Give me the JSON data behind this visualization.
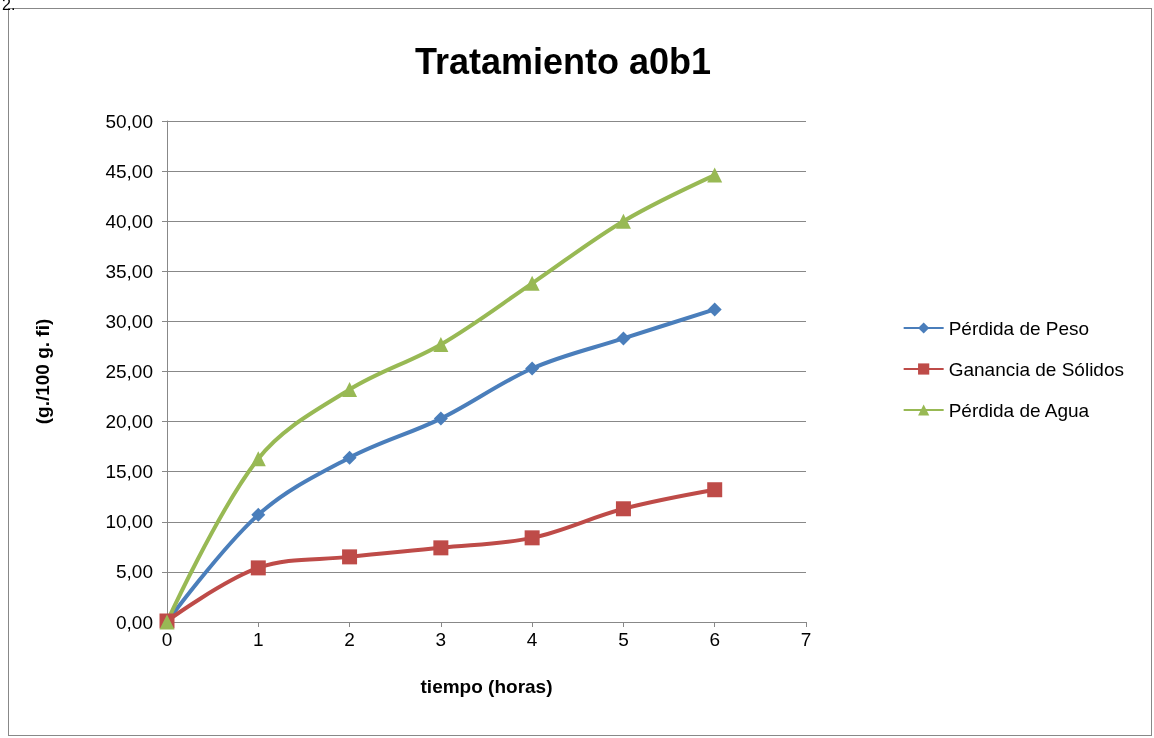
{
  "chart_data": {
    "type": "line",
    "title": "Tratamiento a0b1",
    "xlabel": "tiempo (horas)",
    "ylabel": "(g./100 g. fi)",
    "annotations": [
      "2."
    ],
    "x": [
      0,
      1,
      2,
      3,
      4,
      5,
      6
    ],
    "series": [
      {
        "name": "Pérdida de Peso",
        "color": "#4a7ebb",
        "marker": "diamond",
        "values": [
          0,
          10.7,
          16.4,
          20.3,
          25.3,
          28.3,
          31.2
        ]
      },
      {
        "name": "Ganancia de Sólidos",
        "color": "#be4b48",
        "marker": "square",
        "values": [
          0.1,
          5.4,
          6.5,
          7.4,
          8.4,
          11.3,
          13.2
        ]
      },
      {
        "name": "Pérdida de Agua",
        "color": "#98b954",
        "marker": "triangle",
        "values": [
          0,
          16.3,
          23.2,
          27.7,
          33.8,
          40.0,
          44.6
        ]
      }
    ],
    "xlim": [
      0,
      7
    ],
    "xticks": [
      0,
      1,
      2,
      3,
      4,
      5,
      6,
      7
    ],
    "ylim": [
      0,
      50
    ],
    "yticks": [
      {
        "value": 0,
        "label": "0,00"
      },
      {
        "value": 5,
        "label": "5,00"
      },
      {
        "value": 10,
        "label": "10,00"
      },
      {
        "value": 15,
        "label": "15,00"
      },
      {
        "value": 20,
        "label": "20,00"
      },
      {
        "value": 25,
        "label": "25,00"
      },
      {
        "value": 30,
        "label": "30,00"
      },
      {
        "value": 35,
        "label": "35,00"
      },
      {
        "value": 40,
        "label": "40,00"
      },
      {
        "value": 45,
        "label": "45,00"
      },
      {
        "value": 50,
        "label": "50,00"
      }
    ],
    "grid": "y",
    "legend": "right"
  }
}
